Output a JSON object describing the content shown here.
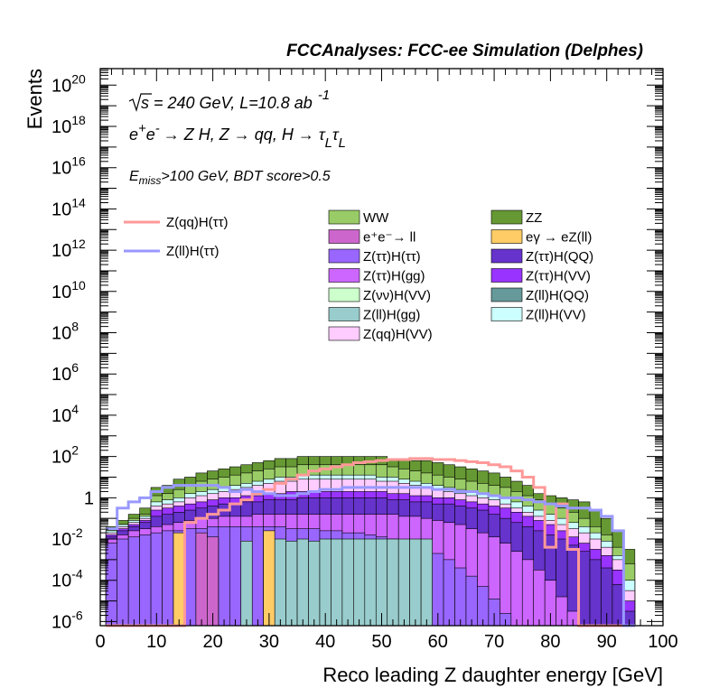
{
  "chart_data": {
    "type": "histogram-stacked",
    "title": "FCCAnalyses: FCC-ee Simulation (Delphes)",
    "xlabel": "Reco leading Z daughter energy [GeV]",
    "ylabel": "Events",
    "xlim": [
      0,
      100
    ],
    "ylim_log10": [
      -6.2,
      20.8
    ],
    "yscale": "log",
    "x_tick_labels": [
      "0",
      "10",
      "20",
      "30",
      "40",
      "50",
      "60",
      "70",
      "80",
      "90",
      "100"
    ],
    "y_tick_exponents": [
      -6,
      -4,
      -2,
      0,
      2,
      4,
      6,
      8,
      10,
      12,
      14,
      16,
      18,
      20
    ],
    "y_tick_labels": {
      "base": "10",
      "one": "1",
      "exponents": [
        "-6",
        "-4",
        "-2",
        "",
        "2",
        "4",
        "6",
        "8",
        "10",
        "12",
        "14",
        "16",
        "18",
        "20"
      ]
    },
    "annotations": {
      "sqrt_s": "s = 240 GeV, L=10.8 ab",
      "sqrt_s_sup": "-1",
      "process_prefix": "e",
      "process_sup1": "+",
      "process_e2": "e",
      "process_sup2": "-",
      "process_rest": "→ Z H, Z  → qq, H  → τ",
      "process_sub1": "L",
      "process_tau2": "τ",
      "process_sub2": "L",
      "cut_E": "E",
      "cut_sub": "miss",
      "cut_rest": ">100 GeV, BDT score>0.5"
    },
    "legend_placement": "top-right",
    "signal_series": [
      {
        "name": "Z(qq)H(ττ)",
        "color": "#ff9999"
      },
      {
        "name": "Z(ll)H(ττ)",
        "color": "#9999ff"
      }
    ],
    "background_legend": [
      {
        "name": "WW",
        "color": "#99cc66"
      },
      {
        "name": "ZZ",
        "color": "#669933"
      },
      {
        "name": "e⁺e⁻→ ll",
        "color": "#cc66cc"
      },
      {
        "name": "eγ → eZ(ll)",
        "color": "#ffcc66"
      },
      {
        "name": "Z(ττ)H(ττ)",
        "color": "#9966ff"
      },
      {
        "name": "Z(ττ)H(QQ)",
        "color": "#6633cc"
      },
      {
        "name": "Z(ττ)H(gg)",
        "color": "#cc66ff"
      },
      {
        "name": "Z(ττ)H(VV)",
        "color": "#9933ff"
      },
      {
        "name": "Z(νν)H(VV)",
        "color": "#ccffcc"
      },
      {
        "name": "Z(ll)H(QQ)",
        "color": "#669999"
      },
      {
        "name": "Z(ll)H(gg)",
        "color": "#99cccc"
      },
      {
        "name": "Z(ll)H(VV)",
        "color": "#ccffff"
      },
      {
        "name": "Z(qq)H(VV)",
        "color": "#ffccff"
      }
    ],
    "bin_edges_start": 1,
    "bin_width": 2,
    "layers_log10": {
      "ZZ": [
        -1.4,
        -1.1,
        -0.8,
        -0.5,
        0.5,
        0.6,
        0.9,
        1.0,
        1.2,
        1.3,
        1.4,
        1.5,
        1.6,
        1.7,
        1.8,
        1.9,
        1.9,
        2.0,
        2.0,
        2.0,
        2.0,
        2.0,
        2.0,
        2.0,
        2.0,
        1.9,
        1.9,
        1.8,
        1.8,
        1.7,
        1.6,
        1.5,
        1.4,
        1.3,
        1.2,
        1.0,
        0.8,
        0.6,
        0.2,
        0.1,
        0.0,
        -0.1,
        -0.2,
        -0.6,
        -1.0,
        -1.6,
        -2.5
      ],
      "WW": [
        -1.6,
        -1.3,
        -1.0,
        -0.8,
        0.1,
        0.2,
        0.4,
        0.6,
        0.8,
        0.9,
        1.0,
        1.1,
        1.2,
        1.3,
        1.4,
        1.5,
        1.5,
        1.6,
        1.6,
        1.6,
        1.6,
        1.6,
        1.6,
        1.6,
        1.6,
        1.5,
        1.4,
        1.3,
        1.2,
        1.1,
        1.0,
        0.9,
        0.8,
        0.7,
        0.6,
        0.5,
        0.3,
        0.1,
        -0.1,
        -0.3,
        -0.5,
        -0.7,
        -1.0,
        -1.4,
        -1.8,
        -2.4,
        -3.2
      ],
      "ZllHVV": [
        -1.6,
        -1.3,
        -1.1,
        -0.9,
        -0.2,
        -0.1,
        0.0,
        0.2,
        0.3,
        0.4,
        0.5,
        0.6,
        0.7,
        0.8,
        0.9,
        1.0,
        1.0,
        1.1,
        1.1,
        1.1,
        1.1,
        1.1,
        1.1,
        1.1,
        1.0,
        1.0,
        0.9,
        0.8,
        0.7,
        0.6,
        0.5,
        0.4,
        0.3,
        0.2,
        0.1,
        0.0,
        -0.2,
        -0.4,
        -0.6,
        -0.8,
        -1.0,
        -1.2,
        -1.4,
        -1.7,
        -2.1,
        -2.8,
        -4.0
      ],
      "ZqqHVV": [
        -1.7,
        -1.4,
        -1.2,
        -1.0,
        -0.4,
        -0.3,
        -0.2,
        0.0,
        0.1,
        0.2,
        0.3,
        0.4,
        0.5,
        0.6,
        0.7,
        0.8,
        0.8,
        0.9,
        0.9,
        0.9,
        0.9,
        0.9,
        0.9,
        0.9,
        0.8,
        0.8,
        0.7,
        0.6,
        0.5,
        0.4,
        0.3,
        0.2,
        0.1,
        0.0,
        -0.1,
        -0.3,
        -0.5,
        -0.7,
        -0.9,
        -1.1,
        -1.3,
        -1.5,
        -1.7,
        -2.0,
        -2.4,
        -3.0,
        -4.5
      ],
      "ZttHVV": [
        -1.8,
        -1.5,
        -1.3,
        -1.1,
        -0.6,
        -0.5,
        -0.4,
        -0.3,
        -0.2,
        -0.1,
        0.0,
        0.0,
        0.1,
        0.1,
        0.2,
        0.2,
        0.3,
        0.3,
        0.3,
        0.3,
        0.3,
        0.3,
        0.3,
        0.3,
        0.3,
        0.2,
        0.2,
        0.1,
        0.1,
        0.0,
        0.0,
        -0.1,
        -0.2,
        -0.3,
        -0.4,
        -0.5,
        -0.7,
        -0.9,
        -1.1,
        -1.3,
        -1.6,
        -1.9,
        -2.2,
        -2.5,
        -2.8,
        -3.5,
        -5.0
      ],
      "ZttHQQ": [
        -1.9,
        -1.6,
        -1.4,
        -1.2,
        -0.9,
        -0.8,
        -0.7,
        -0.6,
        -0.5,
        -0.4,
        -0.3,
        -0.3,
        -0.2,
        -0.2,
        -0.1,
        -0.1,
        -0.1,
        0.0,
        0.0,
        0.0,
        0.0,
        0.0,
        0.0,
        0.0,
        0.0,
        -0.1,
        -0.1,
        -0.2,
        -0.2,
        -0.3,
        -0.3,
        -0.4,
        -0.5,
        -0.6,
        -0.8,
        -1.0,
        -1.2,
        -1.4,
        -1.6,
        -1.8,
        -2.0,
        -2.3,
        -2.6,
        -3.0,
        -3.4,
        -4.2,
        -5.5
      ],
      "ZttHgg": [
        -2.0,
        -1.8,
        -1.6,
        -1.5,
        -1.4,
        -1.3,
        -1.2,
        -1.1,
        -1.0,
        -1.0,
        -0.9,
        -0.9,
        -0.9,
        -0.8,
        -0.8,
        -0.8,
        -0.8,
        -0.8,
        -0.8,
        -0.8,
        -0.8,
        -0.8,
        -0.8,
        -0.8,
        -0.8,
        -0.8,
        -0.9,
        -0.9,
        -1.0,
        -1.1,
        -1.2,
        -1.3,
        -1.5,
        -1.7,
        -1.9,
        -2.2,
        -2.6,
        -3.0,
        -3.5,
        -4.0,
        -4.8,
        -5.5,
        -6.2,
        -6.2,
        -6.2,
        -6.2,
        -6.2
      ],
      "ZttHtt": [
        -2.2,
        -2.0,
        -1.9,
        -1.8,
        -1.7,
        -1.6,
        -1.6,
        -1.5,
        -1.5,
        -1.4,
        -1.4,
        -1.4,
        -1.4,
        -1.4,
        -1.4,
        -1.4,
        -1.5,
        -1.5,
        -1.5,
        -1.6,
        -1.6,
        -1.7,
        -1.7,
        -1.8,
        -1.9,
        -2.0,
        -2.1,
        -2.3,
        -2.5,
        -2.7,
        -3.0,
        -3.4,
        -3.8,
        -4.3,
        -4.9,
        -5.6,
        -6.2,
        -6.2,
        -6.2,
        -6.2,
        -6.2,
        -6.2,
        -6.2,
        -6.2,
        -6.2,
        -6.2,
        -6.2
      ],
      "ZllHgg": [
        -6.2,
        -6.2,
        -6.2,
        -6.2,
        -6.2,
        -6.2,
        -6.2,
        -6.2,
        -6.2,
        -2.0,
        -6.2,
        -6.2,
        -2.1,
        -6.2,
        -6.2,
        -2.0,
        -2.1,
        -2.0,
        -2.1,
        -2.0,
        -2.0,
        -2.0,
        -2.0,
        -2.0,
        -2.0,
        -2.0,
        -2.0,
        -2.0,
        -2.0,
        -6.2,
        -6.2,
        -6.2,
        -6.2,
        -6.2,
        -6.2,
        -6.2,
        -6.2,
        -6.2,
        -6.2,
        -6.2,
        -6.2,
        -6.2,
        -6.2,
        -6.2,
        -6.2,
        -6.2,
        -6.2
      ],
      "eell": [
        -6.2,
        -6.2,
        -6.2,
        -6.2,
        -6.2,
        -6.2,
        -6.2,
        -6.2,
        -1.7,
        -1.9,
        -6.2,
        -6.2,
        -6.2,
        -6.2,
        -6.2,
        -6.2,
        -6.2,
        -6.2,
        -6.2,
        -6.2,
        -6.2,
        -6.2,
        -6.2,
        -6.2,
        -6.2,
        -6.2,
        -6.2,
        -6.2,
        -6.2,
        -6.2,
        -6.2,
        -6.2,
        -6.2,
        -6.2,
        -6.2,
        -6.2,
        -6.2,
        -6.2,
        -6.2,
        -6.2,
        -6.2,
        -6.2,
        -6.2,
        -6.2,
        -6.2,
        -6.2,
        -6.2
      ],
      "egamma": [
        -6.2,
        -6.2,
        -6.2,
        -6.2,
        -6.2,
        -6.2,
        -1.7,
        -6.2,
        -6.2,
        -6.2,
        -6.2,
        -6.2,
        -6.2,
        -6.2,
        -1.6,
        -6.2,
        -6.2,
        -6.2,
        -6.2,
        -6.2,
        -6.2,
        -6.2,
        -6.2,
        -6.2,
        -6.2,
        -6.2,
        -6.2,
        -6.2,
        -6.2,
        -6.2,
        -6.2,
        -6.2,
        -6.2,
        -6.2,
        -6.2,
        -6.2,
        -6.2,
        -6.2,
        -6.2,
        -6.2,
        -6.2,
        -6.2,
        -6.2,
        -6.2,
        -6.2,
        -6.2,
        -6.2
      ]
    },
    "signal_ZqqHtt_log10": [
      -6.2,
      -6.2,
      -6.2,
      -6.2,
      -6.2,
      -6.2,
      -6.2,
      -1.2,
      -1.0,
      -0.8,
      -0.6,
      -0.3,
      -0.1,
      0.2,
      0.4,
      0.7,
      0.9,
      1.1,
      1.3,
      1.4,
      1.5,
      1.6,
      1.7,
      1.75,
      1.8,
      1.85,
      1.85,
      1.9,
      1.9,
      1.85,
      1.85,
      1.8,
      1.75,
      1.7,
      1.6,
      1.5,
      1.3,
      1.0,
      0.5,
      -2.4,
      -0.3,
      -2.5,
      -6.2,
      -6.2,
      -6.2,
      -6.2,
      -6.2
    ],
    "signal_ZllHtt_log10": [
      -1.5,
      -0.5,
      -0.2,
      0.0,
      0.3,
      0.5,
      0.6,
      0.6,
      0.6,
      0.6,
      0.5,
      0.3,
      0.4,
      0.3,
      0.2,
      0.1,
      0.1,
      0.2,
      0.3,
      0.4,
      0.4,
      0.5,
      0.5,
      0.5,
      0.5,
      0.5,
      0.5,
      0.5,
      0.5,
      0.4,
      0.4,
      0.3,
      0.3,
      0.2,
      0.1,
      0.0,
      0.0,
      -0.1,
      -0.2,
      -0.3,
      -0.4,
      -0.5,
      -0.5,
      -0.6,
      -0.9,
      -1.6,
      -6.2
    ]
  }
}
